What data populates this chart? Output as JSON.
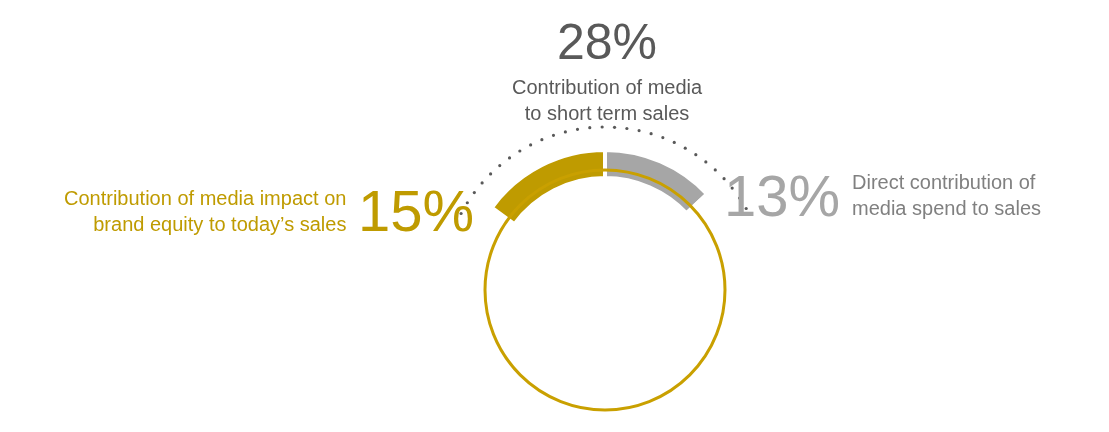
{
  "chart_data": {
    "type": "donut",
    "categories": [
      "Direct contribution of media spend to sales",
      "Contribution of media impact on brand equity to today’s sales"
    ],
    "values": [
      13,
      15
    ],
    "value_labels": [
      "13%",
      "15%"
    ],
    "colors": [
      "#a6a6a6",
      "#bf9b00"
    ],
    "annotations": [
      "28%",
      "Contribution of media to short term sales"
    ],
    "legend": false
  }
}
